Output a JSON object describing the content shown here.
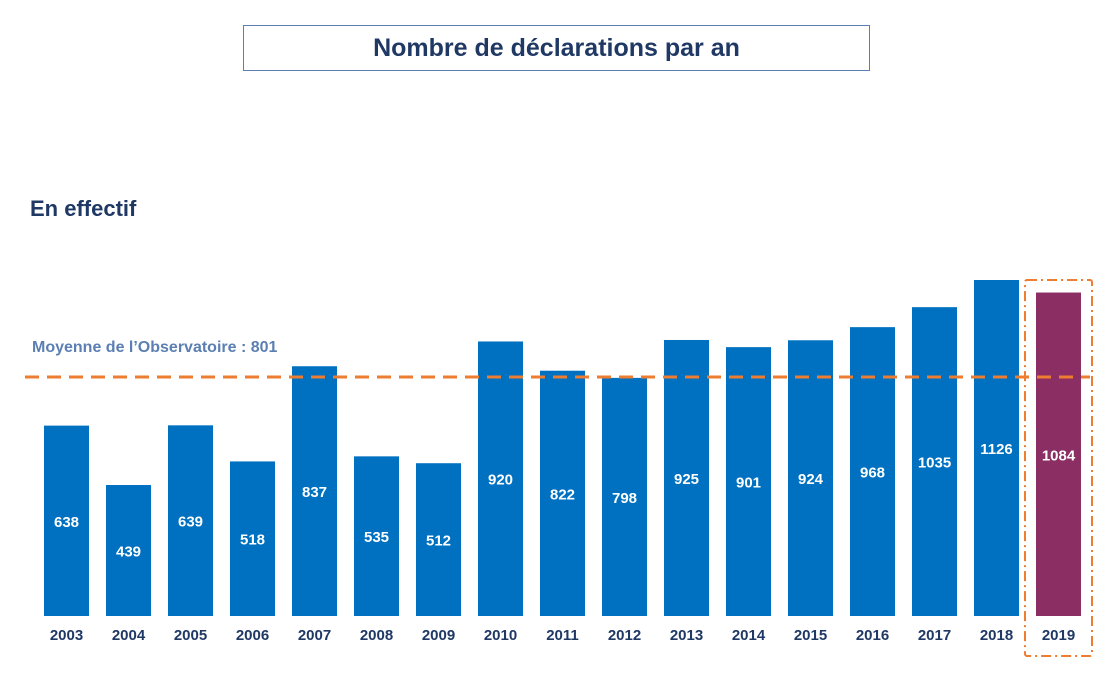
{
  "page": {
    "title": "Nombre de déclarations par an",
    "subtitle": "En effectif"
  },
  "colors": {
    "bar": "#0070c0",
    "highlight_bar": "#8b2e63",
    "average_line": "#ed7d31",
    "highlight_box": "#ed7d31",
    "tick_text": "#1f3864",
    "average_text": "#5b7fb2"
  },
  "chart_data": {
    "type": "bar",
    "categories": [
      "2003",
      "2004",
      "2005",
      "2006",
      "2007",
      "2008",
      "2009",
      "2010",
      "2011",
      "2012",
      "2013",
      "2014",
      "2015",
      "2016",
      "2017",
      "2018",
      "2019"
    ],
    "values": [
      638,
      439,
      639,
      518,
      837,
      535,
      512,
      920,
      822,
      798,
      925,
      901,
      924,
      968,
      1035,
      1126,
      1084
    ],
    "highlight_category": "2019",
    "average": {
      "label": "Moyenne de l’Observatoire : 801",
      "value": 801
    },
    "ylim": [
      0,
      1126
    ],
    "grid": false,
    "legend": "none"
  }
}
